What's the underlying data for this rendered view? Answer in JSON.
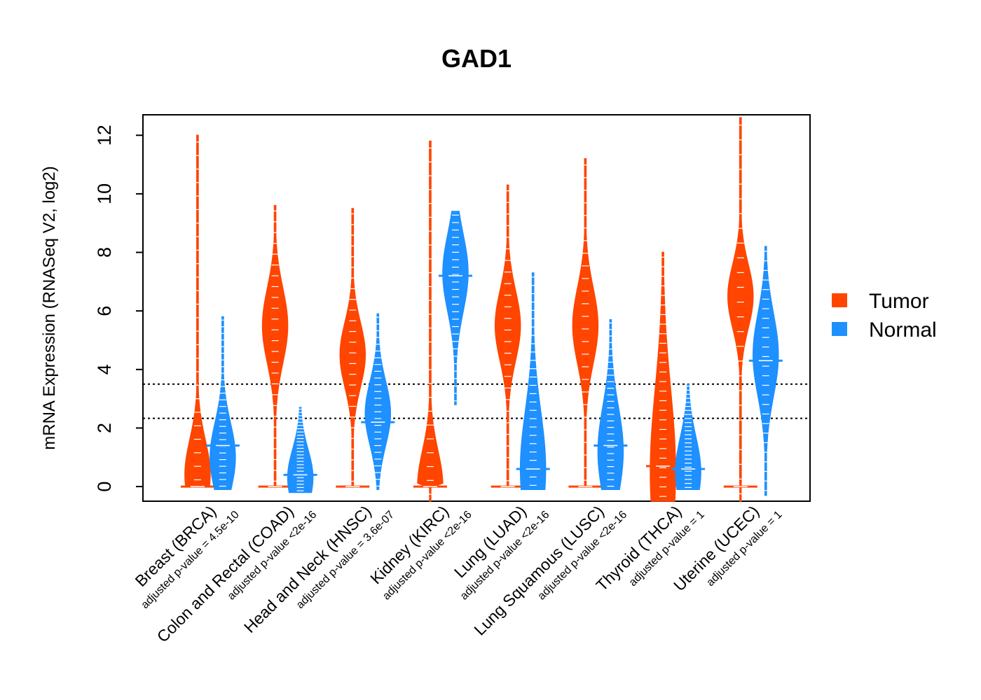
{
  "colors": {
    "tumor": "#FF4500",
    "normal": "#1E90FF",
    "frame": "#000000"
  },
  "chart_data": {
    "type": "violin",
    "title": "GAD1",
    "ylabel": "mRNA Expression (RNASeq V2, log2)",
    "xlabel": "",
    "ylim": [
      -0.5,
      12.7
    ],
    "yticks": [
      0,
      2,
      4,
      6,
      8,
      10,
      12
    ],
    "reference_lines": [
      2.33,
      3.5
    ],
    "legend": {
      "position": "right",
      "entries": [
        "Tumor",
        "Normal"
      ]
    },
    "groups": [
      {
        "name": "Breast (BRCA)",
        "pvalue": "adjusted p-value = 4.5e-10",
        "tumor": {
          "min": 0,
          "max": 12,
          "median": 0,
          "spread": 0.3,
          "mode": 0.4,
          "lower_tail": 0
        },
        "normal": {
          "min": -0.1,
          "max": 5.8,
          "median": 1.4,
          "spread": 0.6,
          "mode": 1.0,
          "lower_tail": 0
        }
      },
      {
        "name": "Colon and Rectal (COAD)",
        "pvalue": "adjusted p-value <2e-16",
        "tumor": {
          "min": 0,
          "max": 9.6,
          "median": 0,
          "spread": 0.4,
          "mode": 5.5,
          "lower_tail": 0
        },
        "normal": {
          "min": -0.2,
          "max": 2.7,
          "median": 0.4,
          "spread": 1.0,
          "mode": 0.3,
          "lower_tail": 0
        }
      },
      {
        "name": "Head and Neck (HNSC)",
        "pvalue": "adjusted p-value = 3.6e-07",
        "tumor": {
          "min": 0,
          "max": 9.5,
          "median": 0,
          "spread": 0.35,
          "mode": 4.5,
          "lower_tail": 0
        },
        "normal": {
          "min": -0.1,
          "max": 5.9,
          "median": 2.2,
          "spread": 0.55,
          "mode": 2.5,
          "lower_tail": 0
        }
      },
      {
        "name": "Kidney (KIRC)",
        "pvalue": "adjusted p-value <2e-16",
        "tumor": {
          "min": -0.5,
          "max": 11.8,
          "median": 0,
          "spread": 0.3,
          "mode": 0,
          "lower_tail": 0.5
        },
        "normal": {
          "min": 2.8,
          "max": 9.4,
          "median": 7.2,
          "spread": 0.6,
          "mode": 7.3,
          "lower_tail": 0
        }
      },
      {
        "name": "Lung (LUAD)",
        "pvalue": "adjusted p-value <2e-16",
        "tumor": {
          "min": 0,
          "max": 10.3,
          "median": 0,
          "spread": 0.35,
          "mode": 5.5,
          "lower_tail": 0
        },
        "normal": {
          "min": -0.1,
          "max": 7.3,
          "median": 0.6,
          "spread": 0.8,
          "mode": 0.6,
          "lower_tail": 0
        }
      },
      {
        "name": "Lung Squamous (LUSC)",
        "pvalue": "adjusted p-value <2e-16",
        "tumor": {
          "min": 0,
          "max": 11.2,
          "median": 0,
          "spread": 0.35,
          "mode": 5.5,
          "lower_tail": 0
        },
        "normal": {
          "min": -0.1,
          "max": 5.7,
          "median": 1.4,
          "spread": 0.8,
          "mode": 1.2,
          "lower_tail": 0
        }
      },
      {
        "name": "Thyroid (THCA)",
        "pvalue": "adjusted p-value = 1",
        "tumor": {
          "min": -0.5,
          "max": 8,
          "median": 0.7,
          "spread": 1.0,
          "mode": 0.5,
          "lower_tail": 0
        },
        "normal": {
          "min": -0.1,
          "max": 3.5,
          "median": 0.6,
          "spread": 1.0,
          "mode": 0.5,
          "lower_tail": 0
        }
      },
      {
        "name": "Uterine (UCEC)",
        "pvalue": "adjusted p-value = 1",
        "tumor": {
          "min": -0.5,
          "max": 12.6,
          "median": 0,
          "spread": 0.25,
          "mode": 6.5,
          "lower_tail": 0.5
        },
        "normal": {
          "min": -0.3,
          "max": 8.2,
          "median": 4.3,
          "spread": 0.5,
          "mode": 4.5,
          "lower_tail": 0
        }
      }
    ]
  }
}
